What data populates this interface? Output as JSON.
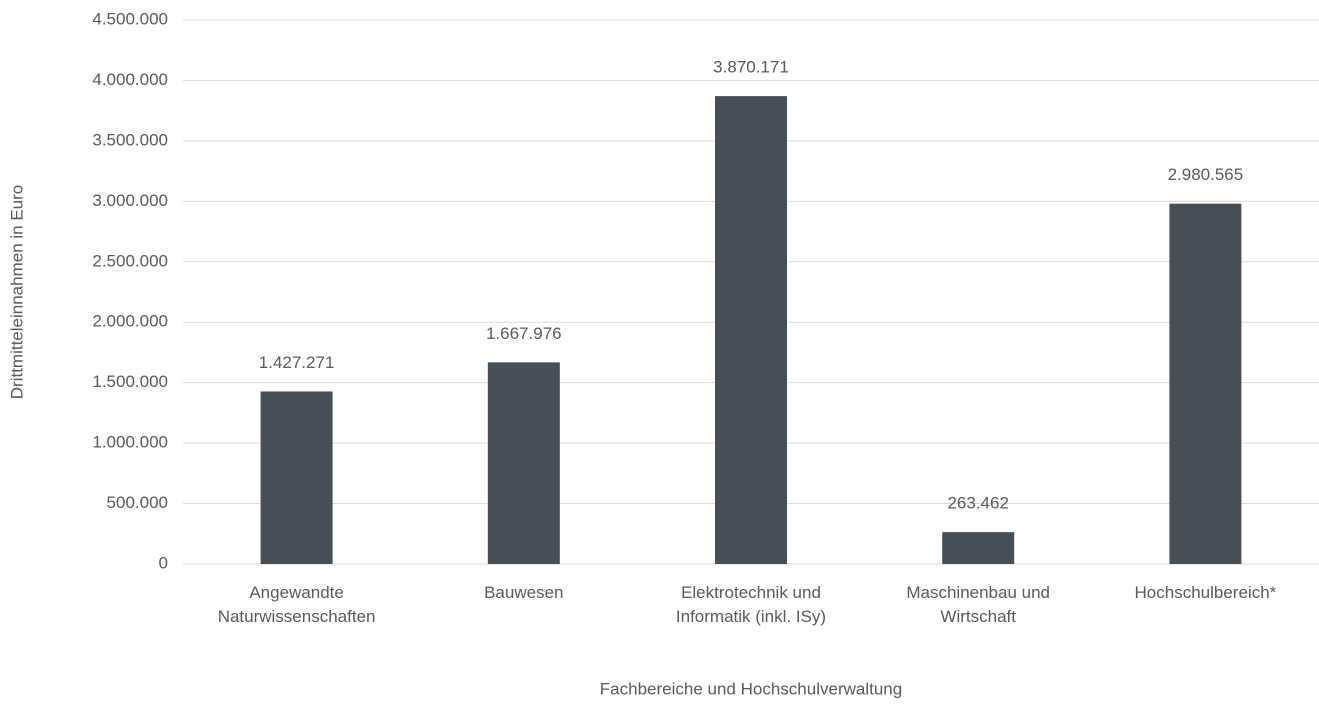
{
  "chart_data": {
    "type": "bar",
    "y_label": "Drittmitteleinnahmen in Euro",
    "x_label": "Fachbereiche und Hochschulverwaltung",
    "categories": [
      "Angewandte Naturwissenschaften",
      "Bauwesen",
      "Elektrotechnik und Informatik (inkl. ISy)",
      "Maschinenbau und Wirtschaft",
      "Hochschulbereich*"
    ],
    "values": [
      1427271,
      1667976,
      3870171,
      263462,
      2980565
    ],
    "value_labels": [
      "1.427.271",
      "1.667.976",
      "3.870.171",
      "263.462",
      "2.980.565"
    ],
    "color": "#464f55",
    "ylim": [
      0,
      4500000
    ],
    "yticks": [
      0,
      {
        "value": 500000,
        "label": "500.000"
      },
      {
        "value": 1000000,
        "label": "1.000.000"
      },
      {
        "value": 1500000,
        "label": "1.500.000"
      },
      {
        "value": 2000000,
        "label": "2.000.000"
      },
      {
        "value": 2500000,
        "label": "2.500.000"
      },
      {
        "value": 3000000,
        "label": "3.000.000"
      },
      {
        "value": 3500000,
        "label": "3.500.000"
      },
      {
        "value": 4000000,
        "label": "4.000.000"
      },
      {
        "value": 4500000,
        "label": "4.500.000"
      }
    ],
    "grid": true
  }
}
